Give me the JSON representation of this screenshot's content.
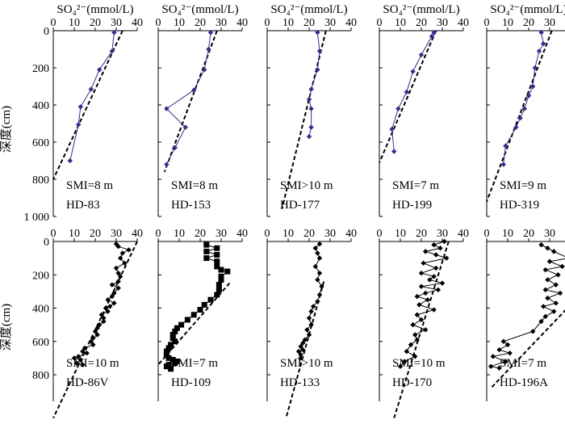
{
  "figure": {
    "y_axis_label": "深度(cm)",
    "x_axis_label": "SO₄²⁻(mmol/L)"
  },
  "colors": {
    "top_series": "#3b2a8f",
    "bottom_series": "#000000",
    "fit_line": "#000000"
  },
  "chart_data": [
    {
      "type": "line",
      "core": "HD-83",
      "smi": "SMI=8 m",
      "row": "top",
      "xlabel": "SO₄²⁻(mmol/L)",
      "xlim": [
        0,
        40
      ],
      "xticks": [
        0,
        10,
        20,
        30,
        40
      ],
      "ylim": [
        0,
        1000
      ],
      "yticks": [
        0,
        200,
        400,
        600,
        800,
        1000
      ],
      "ytick_labels": [
        "0",
        "200",
        "400",
        "600",
        "800",
        "1 000"
      ],
      "ylabel": "深度(cm)",
      "grid": false,
      "marker": "diamond",
      "series": [
        {
          "x": [
            29,
            28,
            22,
            18,
            13,
            12,
            8
          ],
          "y": [
            10,
            110,
            210,
            315,
            410,
            505,
            700
          ]
        }
      ],
      "trend": {
        "x": [
          33,
          0
        ],
        "y": [
          0,
          800
        ]
      }
    },
    {
      "type": "line",
      "core": "HD-153",
      "smi": "SMI=8 m",
      "row": "top",
      "xlabel": "SO₄²⁻(mmol/L)",
      "xlim": [
        0,
        40
      ],
      "xticks": [
        0,
        10,
        20,
        30,
        40
      ],
      "ylim": [
        0,
        1000
      ],
      "grid": false,
      "marker": "diamond",
      "series": [
        {
          "x": [
            25,
            24,
            22,
            17,
            4,
            13,
            8,
            4
          ],
          "y": [
            10,
            100,
            210,
            320,
            420,
            520,
            630,
            720
          ]
        }
      ],
      "trend": {
        "x": [
          28,
          3
        ],
        "y": [
          0,
          760
        ]
      }
    },
    {
      "type": "line",
      "core": "HD-177",
      "smi": "SMI>10 m",
      "row": "top",
      "xlabel": "SO₄²⁻(mmol/L)",
      "xlim": [
        0,
        40
      ],
      "xticks": [
        0,
        10,
        20,
        30,
        40
      ],
      "ylim": [
        0,
        1000
      ],
      "grid": false,
      "marker": "diamond",
      "series": [
        {
          "x": [
            24,
            25,
            24,
            21,
            20,
            21,
            21,
            20
          ],
          "y": [
            10,
            110,
            210,
            315,
            370,
            420,
            520,
            570
          ]
        }
      ],
      "trend": {
        "x": [
          28,
          7
        ],
        "y": [
          0,
          960
        ]
      }
    },
    {
      "type": "line",
      "core": "HD-199",
      "smi": "SMI=7 m",
      "row": "top",
      "xlabel": "SO₄²⁻(mmol/L)",
      "xlim": [
        0,
        40
      ],
      "xticks": [
        0,
        10,
        20,
        30,
        40
      ],
      "ylim": [
        0,
        1000
      ],
      "grid": false,
      "marker": "diamond",
      "series": [
        {
          "x": [
            26,
            25,
            20,
            16,
            13,
            9,
            6,
            7
          ],
          "y": [
            10,
            30,
            130,
            220,
            330,
            420,
            530,
            650
          ]
        }
      ],
      "trend": {
        "x": [
          27,
          0
        ],
        "y": [
          0,
          710
        ]
      }
    },
    {
      "type": "line",
      "core": "HD-319",
      "smi": "SMI=9 m",
      "row": "top",
      "xlabel": "SO₄²⁻(mmol/L)",
      "xlim": [
        0,
        40
      ],
      "xticks": [
        0,
        10,
        20,
        30,
        40
      ],
      "ylim": [
        0,
        1000
      ],
      "grid": false,
      "marker": "diamond",
      "series": [
        {
          "x": [
            26,
            27,
            25,
            23,
            22,
            20,
            18,
            16,
            14,
            9,
            8
          ],
          "y": [
            10,
            70,
            110,
            200,
            300,
            350,
            420,
            470,
            520,
            620,
            720
          ]
        }
      ],
      "trend": {
        "x": [
          31,
          0
        ],
        "y": [
          0,
          920
        ]
      }
    },
    {
      "type": "line",
      "core": "HD-86V",
      "smi": "SMI=10 m",
      "row": "bottom",
      "xlabel": "",
      "xlim": [
        0,
        40
      ],
      "xticks": [
        0,
        10,
        20,
        30,
        40
      ],
      "ylim": [
        0,
        1000
      ],
      "yticks": [
        0,
        200,
        400,
        600,
        800
      ],
      "ylabel": "深度(cm)",
      "grid": false,
      "marker": "diamond",
      "series": [
        {
          "x": [
            30,
            31,
            36,
            33,
            32,
            34,
            30,
            31,
            32,
            31,
            28,
            31,
            29,
            28,
            26,
            29,
            27,
            25,
            26,
            23,
            24,
            24,
            22,
            21,
            20,
            21,
            19,
            18,
            19,
            15,
            14,
            16,
            12,
            10,
            13,
            11,
            14
          ],
          "y": [
            15,
            30,
            50,
            70,
            100,
            130,
            160,
            190,
            210,
            240,
            260,
            280,
            310,
            330,
            350,
            370,
            390,
            400,
            420,
            440,
            460,
            480,
            500,
            520,
            540,
            560,
            580,
            600,
            620,
            640,
            660,
            670,
            690,
            700,
            710,
            730,
            740
          ]
        }
      ],
      "trend": {
        "x": [
          40,
          0
        ],
        "y": [
          0,
          1060
        ]
      }
    },
    {
      "type": "line",
      "core": "HD-109",
      "smi": "SMI=7 m",
      "row": "bottom",
      "xlabel": "",
      "xlim": [
        0,
        40
      ],
      "xticks": [
        0,
        10,
        20,
        30,
        40
      ],
      "ylim": [
        0,
        1000
      ],
      "grid": false,
      "marker": "square",
      "series": [
        {
          "x": [
            23,
            28,
            23,
            28,
            23,
            28,
            28,
            30,
            33,
            30,
            30,
            29,
            29,
            28,
            25,
            22,
            20,
            17,
            14,
            11,
            9,
            8,
            7,
            7,
            8,
            6,
            5,
            4,
            4,
            5,
            7,
            9,
            8,
            5,
            4,
            6
          ],
          "y": [
            20,
            40,
            60,
            80,
            100,
            120,
            150,
            170,
            180,
            210,
            230,
            260,
            290,
            320,
            350,
            380,
            410,
            440,
            470,
            500,
            520,
            540,
            560,
            580,
            600,
            620,
            640,
            660,
            680,
            700,
            710,
            720,
            730,
            740,
            750,
            765
          ]
        }
      ],
      "trend": {
        "x": [
          34,
          0
        ],
        "y": [
          250,
          740
        ]
      }
    },
    {
      "type": "line",
      "core": "HD-133",
      "smi": "SMI>10 m",
      "row": "bottom",
      "xlabel": "",
      "xlim": [
        0,
        40
      ],
      "xticks": [
        0,
        10,
        20,
        30,
        40
      ],
      "ylim": [
        0,
        1000
      ],
      "grid": false,
      "marker": "diamond",
      "series": [
        {
          "x": [
            25,
            23,
            24,
            25,
            23,
            25,
            24,
            26,
            25,
            24,
            22,
            21,
            20,
            21,
            19,
            20,
            18,
            17,
            16,
            17,
            15,
            16,
            16
          ],
          "y": [
            15,
            40,
            70,
            100,
            150,
            190,
            230,
            270,
            320,
            360,
            390,
            420,
            460,
            500,
            530,
            560,
            590,
            610,
            630,
            650,
            660,
            680,
            700
          ]
        }
      ],
      "trend": {
        "x": [
          27,
          9
        ],
        "y": [
          240,
          1060
        ]
      }
    },
    {
      "type": "line",
      "core": "HD-170",
      "smi": "SMI=10 m",
      "row": "bottom",
      "xlabel": "",
      "xlim": [
        0,
        40
      ],
      "xticks": [
        0,
        10,
        20,
        30,
        40
      ],
      "ylim": [
        0,
        1000
      ],
      "grid": false,
      "marker": "diamond",
      "series": [
        {
          "x": [
            31,
            26,
            29,
            22,
            27,
            32,
            21,
            27,
            20,
            26,
            24,
            30,
            20,
            28,
            22,
            18,
            23,
            19,
            26,
            18,
            20,
            16,
            22,
            17,
            18,
            15,
            13,
            17,
            12,
            10
          ],
          "y": [
            0,
            20,
            40,
            60,
            80,
            100,
            130,
            160,
            190,
            210,
            230,
            250,
            270,
            290,
            310,
            330,
            350,
            380,
            410,
            440,
            470,
            500,
            530,
            560,
            590,
            620,
            660,
            690,
            720,
            750
          ]
        }
      ],
      "trend": {
        "x": [
          33,
          7
        ],
        "y": [
          0,
          1060
        ]
      }
    },
    {
      "type": "line",
      "core": "HD-196A",
      "smi": "SMI=7 m",
      "row": "bottom",
      "xlabel": "",
      "xlim": [
        0,
        40
      ],
      "xticks": [
        0,
        10,
        20,
        30,
        40
      ],
      "ylim": [
        0,
        1000
      ],
      "grid": false,
      "marker": "diamond",
      "series": [
        {
          "x": [
            26,
            29,
            32,
            39,
            30,
            36,
            28,
            34,
            29,
            33,
            28,
            35,
            29,
            33,
            27,
            32,
            28,
            26,
            22,
            8,
            10,
            6,
            11,
            3,
            9,
            2,
            6
          ],
          "y": [
            20,
            40,
            60,
            100,
            120,
            150,
            170,
            200,
            230,
            260,
            290,
            310,
            340,
            370,
            390,
            420,
            450,
            480,
            540,
            600,
            620,
            650,
            670,
            690,
            720,
            750,
            760
          ]
        }
      ],
      "trend": {
        "x": [
          40,
          2
        ],
        "y": [
          380,
          880
        ]
      }
    }
  ]
}
